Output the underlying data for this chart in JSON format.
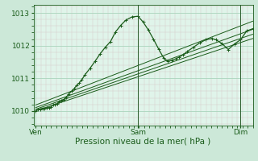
{
  "background_color": "#cce8d8",
  "plot_bg_color": "#e0f4ea",
  "grid_major_color": "#aad4bc",
  "grid_minor_color": "#c8e8d8",
  "line_color": "#1a5c1a",
  "xlabel": "Pression niveau de la mer( hPa )",
  "yticks": [
    1010,
    1011,
    1012,
    1013
  ],
  "xtick_labels": [
    "Ven",
    "Sam",
    "Dim"
  ],
  "xtick_positions": [
    0.0,
    0.5,
    1.0
  ],
  "ylim": [
    1009.55,
    1013.25
  ],
  "xlim": [
    -0.01,
    1.06
  ],
  "series1_x": [
    0.0,
    0.012,
    0.022,
    0.033,
    0.044,
    0.055,
    0.065,
    0.075,
    0.085,
    0.095,
    0.105,
    0.115,
    0.125,
    0.138,
    0.15,
    0.162,
    0.175,
    0.188,
    0.2,
    0.212,
    0.225,
    0.24,
    0.265,
    0.29,
    0.315,
    0.34,
    0.365,
    0.39,
    0.415,
    0.44,
    0.47,
    0.5,
    0.525,
    0.55,
    0.575,
    0.6,
    0.625,
    0.645,
    0.665,
    0.685,
    0.7,
    0.72,
    0.74,
    0.77,
    0.8,
    0.83,
    0.86,
    0.88,
    0.91,
    0.94,
    0.97,
    1.0,
    1.03,
    1.06
  ],
  "series1_y": [
    1010.0,
    1010.05,
    1010.05,
    1010.08,
    1010.08,
    1010.1,
    1010.1,
    1010.12,
    1010.18,
    1010.2,
    1010.22,
    1010.28,
    1010.32,
    1010.35,
    1010.42,
    1010.52,
    1010.6,
    1010.68,
    1010.78,
    1010.85,
    1010.95,
    1011.1,
    1011.3,
    1011.52,
    1011.75,
    1011.95,
    1012.12,
    1012.42,
    1012.62,
    1012.78,
    1012.88,
    1012.9,
    1012.72,
    1012.48,
    1012.2,
    1011.9,
    1011.62,
    1011.52,
    1011.55,
    1011.6,
    1011.65,
    1011.72,
    1011.82,
    1011.95,
    1012.08,
    1012.18,
    1012.22,
    1012.18,
    1012.06,
    1011.88,
    1012.05,
    1012.18,
    1012.45,
    1012.52
  ],
  "trend1_x": [
    0.0,
    1.06
  ],
  "trend1_y": [
    1010.0,
    1012.22
  ],
  "trend2_x": [
    0.0,
    1.06
  ],
  "trend2_y": [
    1010.05,
    1012.35
  ],
  "trend3_x": [
    0.0,
    1.06
  ],
  "trend3_y": [
    1010.1,
    1012.5
  ],
  "trend4_x": [
    0.0,
    1.06
  ],
  "trend4_y": [
    1010.18,
    1012.75
  ],
  "vline_positions": [
    0.5,
    1.0
  ],
  "vline_color": "#2a5c2a",
  "tick_label_color": "#1a5c1a",
  "axis_label_color": "#1a5c1a",
  "tick_fontsize": 6.5,
  "label_fontsize": 7.5
}
